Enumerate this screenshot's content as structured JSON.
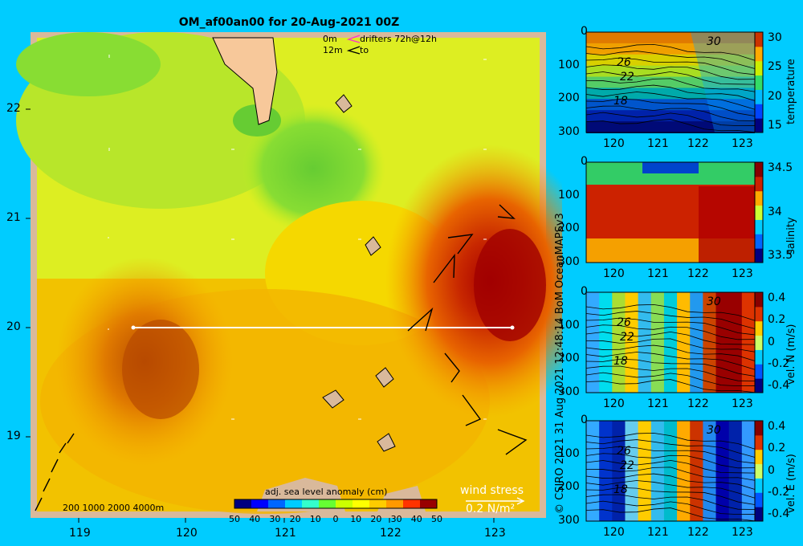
{
  "title": "OM_af00an00 for 20-Aug-2021 00Z",
  "legend": {
    "drifters_0m": "0m",
    "drifters_12m": "12m",
    "drifters_label": "drifters 72h@12h",
    "to_label": "to",
    "colors": {
      "drifter_0m": "#ff33cc",
      "drifter_12m": "#000000"
    }
  },
  "depth_contours": "200  1000  2000  4000m",
  "side_credit": "© CSIRO 2021   31 Aug 2021 12:48:14 BoM OceanMAPSv3",
  "wind_stress": {
    "label": "wind stress",
    "scale": "0.2 N/m²"
  },
  "chart_data": [
    {
      "type": "heatmap",
      "name": "map",
      "colorbar": {
        "label": "adj. sea level anomaly (cm)",
        "ticks": [
          "50",
          "40",
          "30",
          "20",
          "10",
          "0",
          "10",
          "20",
          "30",
          "40",
          "50"
        ],
        "colors": [
          "#000080",
          "#0000ff",
          "#0066ff",
          "#00ccff",
          "#33ffcc",
          "#66ff33",
          "#ccff00",
          "#ffff00",
          "#ffcc00",
          "#ff9900",
          "#ff3300",
          "#990000"
        ]
      },
      "xticks": [
        "119",
        "120",
        "121",
        "122",
        "123"
      ],
      "yticks": [
        "22",
        "21",
        "20",
        "19"
      ],
      "xlim": [
        118.5,
        123.5
      ],
      "ylim": [
        18.25,
        22.65
      ]
    },
    {
      "type": "heatmap",
      "name": "temperature",
      "xticks": [
        "120",
        "121",
        "122",
        "123"
      ],
      "yticks": [
        "0",
        "100",
        "200",
        "300"
      ],
      "cbar_ticks": [
        "30",
        "25",
        "20",
        "15"
      ],
      "cbar_label": "temperature",
      "contour_labels": [
        "30",
        "26",
        "22",
        "18"
      ]
    },
    {
      "type": "heatmap",
      "name": "salinity",
      "xticks": [
        "120",
        "121",
        "122",
        "123"
      ],
      "yticks": [
        "0",
        "100",
        "200",
        "300"
      ],
      "cbar_ticks": [
        "34.5",
        "34",
        "33.5"
      ],
      "cbar_label": "salinity"
    },
    {
      "type": "heatmap",
      "name": "vel_n",
      "xticks": [
        "120",
        "121",
        "122",
        "123"
      ],
      "yticks": [
        "0",
        "100",
        "200",
        "300"
      ],
      "cbar_ticks": [
        "0.4",
        "0.2",
        "0",
        "-0.2",
        "-0.4"
      ],
      "cbar_label": "vel. N (m/s)",
      "contour_labels": [
        "30",
        "26",
        "22",
        "18"
      ]
    },
    {
      "type": "heatmap",
      "name": "vel_e",
      "xticks": [
        "120",
        "121",
        "122",
        "123"
      ],
      "yticks": [
        "0",
        "100",
        "200",
        "300"
      ],
      "cbar_ticks": [
        "0.4",
        "0.2",
        "0",
        "-0.2",
        "-0.4"
      ],
      "cbar_label": "vel. E (m/s)",
      "contour_labels": [
        "30",
        "26",
        "22",
        "18"
      ]
    }
  ]
}
